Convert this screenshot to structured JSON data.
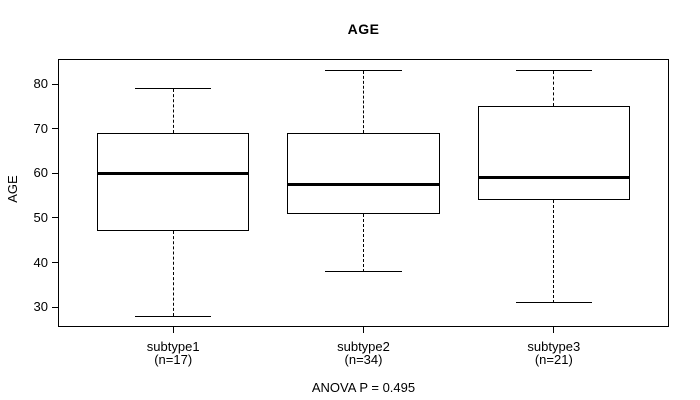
{
  "chart_data": {
    "type": "boxplot",
    "title": "AGE",
    "ylabel": "AGE",
    "footer": "ANOVA P = 0.495",
    "yticks": [
      30,
      40,
      50,
      60,
      70,
      80
    ],
    "ylim": [
      25.8,
      85.4
    ],
    "xlim": [
      0.4,
      3.6
    ],
    "box_width_units": 0.8,
    "cap_width_units": 0.4,
    "grid": false,
    "colors": {
      "line": "#000000",
      "median": "#000000",
      "box_fill": "#ffffff",
      "background": "#ffffff",
      "text": "#000000"
    },
    "groups": [
      {
        "label": "subtype1",
        "sublabel": "(n=17)",
        "n": 17,
        "position": 1,
        "whisker_low": 28,
        "q1": 47,
        "median": 60,
        "q3": 69,
        "whisker_high": 79
      },
      {
        "label": "subtype2",
        "sublabel": "(n=34)",
        "n": 34,
        "position": 2,
        "whisker_low": 38,
        "q1": 51,
        "median": 57.5,
        "q3": 69,
        "whisker_high": 83
      },
      {
        "label": "subtype3",
        "sublabel": "(n=21)",
        "n": 21,
        "position": 3,
        "whisker_low": 31,
        "q1": 54,
        "median": 59,
        "q3": 75,
        "whisker_high": 83
      }
    ]
  }
}
